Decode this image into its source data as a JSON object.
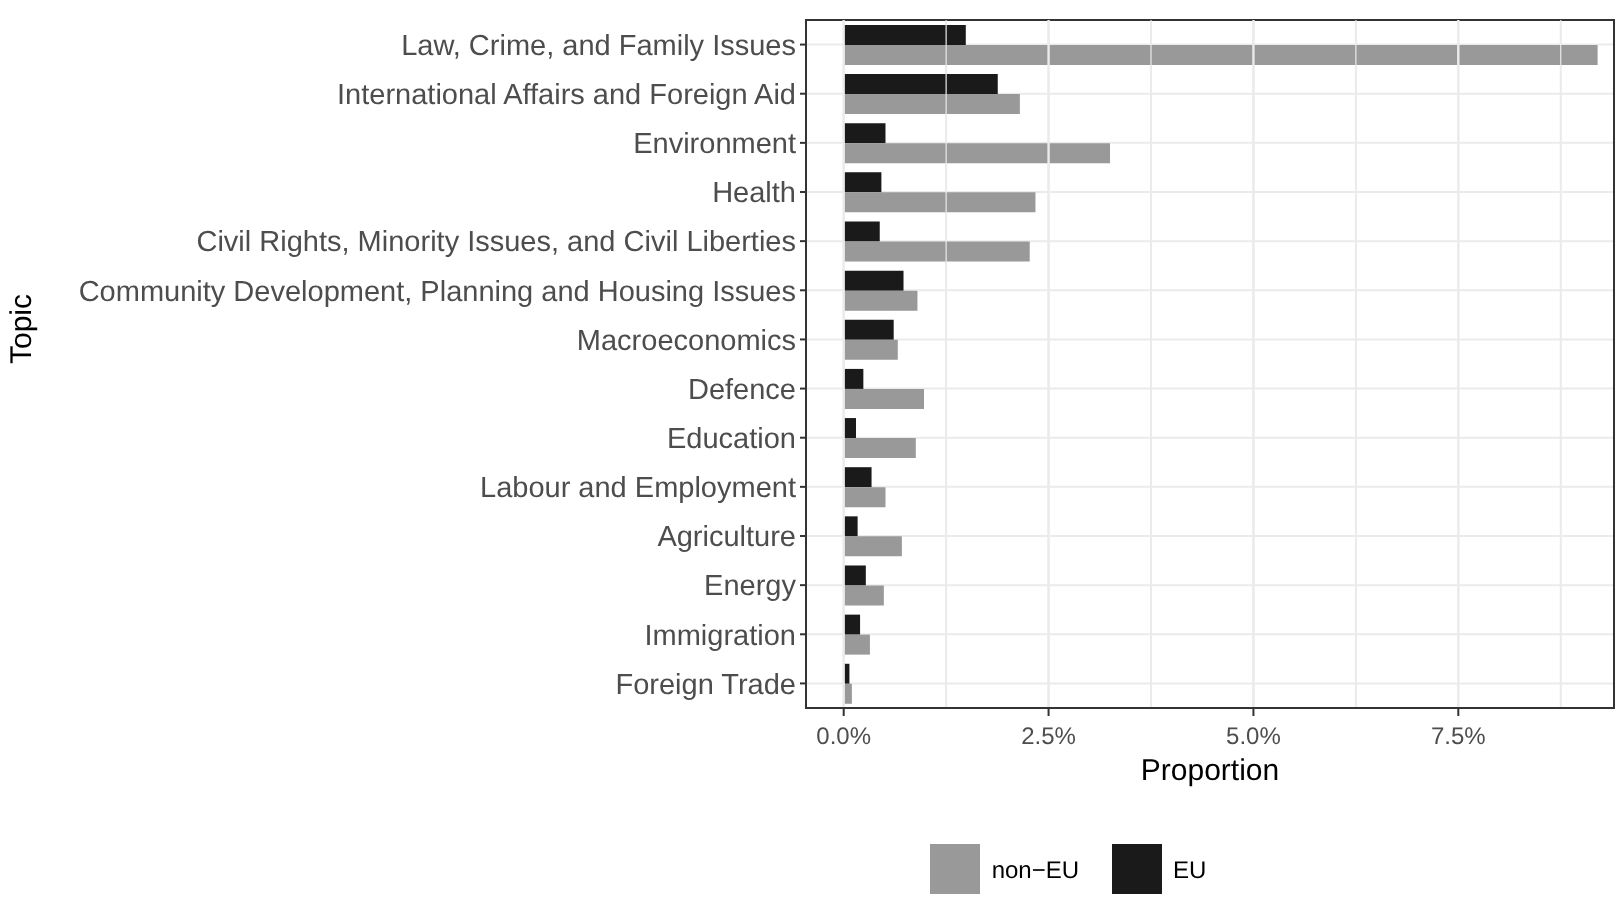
{
  "chart_data": {
    "type": "bar",
    "orientation": "horizontal",
    "xlabel": "Proportion",
    "ylabel": "Topic",
    "categories": [
      "Law, Crime, and Family Issues",
      "International Affairs and Foreign Aid",
      "Environment",
      "Health",
      "Civil Rights, Minority Issues, and Civil Liberties",
      "Community Development, Planning and Housing Issues",
      "Macroeconomics",
      "Defence",
      "Education",
      "Labour and Employment",
      "Agriculture",
      "Energy",
      "Immigration",
      "Foreign Trade"
    ],
    "series": [
      {
        "name": "non−EU",
        "color": "#999999",
        "values": [
          9.2,
          2.15,
          3.25,
          2.34,
          2.27,
          0.9,
          0.66,
          0.98,
          0.88,
          0.51,
          0.71,
          0.49,
          0.32,
          0.1
        ]
      },
      {
        "name": "EU",
        "color": "#1a1a1a",
        "values": [
          1.49,
          1.88,
          0.51,
          0.46,
          0.44,
          0.73,
          0.61,
          0.24,
          0.15,
          0.34,
          0.17,
          0.27,
          0.2,
          0.07
        ]
      }
    ],
    "xlim": [
      -0.46,
      9.4
    ],
    "xticks": [
      {
        "value": 0,
        "label": "0.0%"
      },
      {
        "value": 1.25,
        "label": null
      },
      {
        "value": 2.5,
        "label": "2.5%"
      },
      {
        "value": 3.75,
        "label": null
      },
      {
        "value": 5,
        "label": "5.0%"
      },
      {
        "value": 6.25,
        "label": null
      },
      {
        "value": 7.5,
        "label": "7.5%"
      },
      {
        "value": 8.75,
        "label": null
      }
    ],
    "grid": true,
    "legend": "bottom"
  }
}
